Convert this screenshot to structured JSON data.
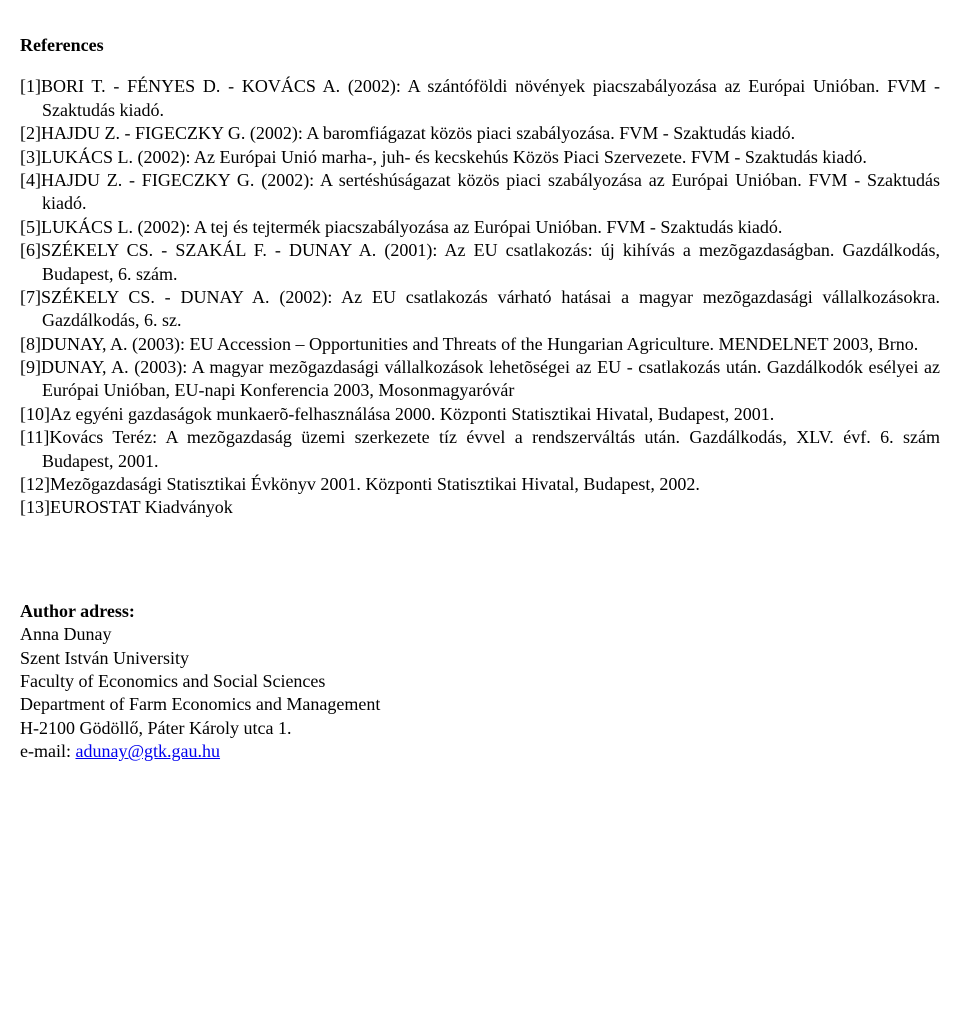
{
  "title": "References",
  "refs": [
    {
      "num": "[1]",
      "authors": "BORI T. - FÉNYES D. - KOVÁCS A.",
      "rest": " (2002): A szántóföldi növények piacszabályozása az Európai Unióban. FVM - Szaktudás kiadó."
    },
    {
      "num": "[2]",
      "authors": "HAJDU Z. - FIGECZKY G.",
      "rest": " (2002): A baromfiágazat közös piaci szabályozása. FVM - Szaktudás kiadó."
    },
    {
      "num": "[3]",
      "authors": "LUKÁCS L.",
      "rest": " (2002): Az Európai Unió marha-, juh- és kecskehús Közös Piaci Szervezete. FVM - Szaktudás kiadó."
    },
    {
      "num": "[4]",
      "authors": "HAJDU Z. - FIGECZKY G.",
      "rest": " (2002): A sertéshúságazat közös piaci szabályozása az Európai Unióban. FVM - Szaktudás kiadó."
    },
    {
      "num": "[5]",
      "authors": "LUKÁCS L.",
      "rest": " (2002): A tej és tejtermék piacszabályozása az Európai Unióban. FVM - Szaktudás kiadó."
    },
    {
      "num": "[6]",
      "authors": "SZÉKELY CS. - SZAKÁL F. - DUNAY A.",
      "rest": " (2001): Az EU csatlakozás: új kihívás a mezõgazdaságban. Gazdálkodás, Budapest, 6. szám."
    },
    {
      "num": "[7]",
      "authors": "SZÉKELY CS. - DUNAY A.",
      "rest": " (2002): Az EU csatlakozás várható hatásai a magyar mezõgazdasági vállalkozásokra. Gazdálkodás, 6. sz."
    },
    {
      "num": "[8]",
      "authors": "DUNAY, A.",
      "rest": " (2003): EU Accession – Opportunities and Threats of the Hungarian Agriculture. MENDELNET 2003, Brno."
    },
    {
      "num": "[9]",
      "authors": "DUNAY, A.",
      "rest": " (2003): A magyar mezõgazdasági vállalkozások lehetõségei az EU - csatlakozás után. Gazdálkodók esélyei az Európai Unióban, EU-napi Konferencia 2003, Mosonmagyaróvár"
    },
    {
      "num": "[10]",
      "authors": "",
      "rest": "Az egyéni gazdaságok munkaerõ-felhasználása 2000. Központi Statisztikai Hivatal, Budapest, 2001."
    },
    {
      "num": "[11]",
      "authors": "",
      "rest": "Kovács Teréz: A mezõgazdaság üzemi szerkezete tíz évvel a rendszerváltás után. Gazdálkodás, XLV. évf. 6. szám Budapest, 2001."
    },
    {
      "num": "[12]",
      "authors": "",
      "rest": "Mezõgazdasági Statisztikai Évkönyv 2001. Központi Statisztikai Hivatal, Budapest, 2002."
    },
    {
      "num": "[13]",
      "authors": "",
      "rest": "EUROSTAT Kiadványok"
    }
  ],
  "author_block": {
    "heading": "Author adress:",
    "name": "Anna Dunay",
    "university": "Szent István University",
    "faculty": "Faculty of Economics and Social Sciences",
    "department": "Department of Farm Economics and Management",
    "address": "H-2100 Gödöllő, Páter Károly utca 1.",
    "email_label": "e-mail: ",
    "email": "adunay@gtk.gau.hu"
  }
}
